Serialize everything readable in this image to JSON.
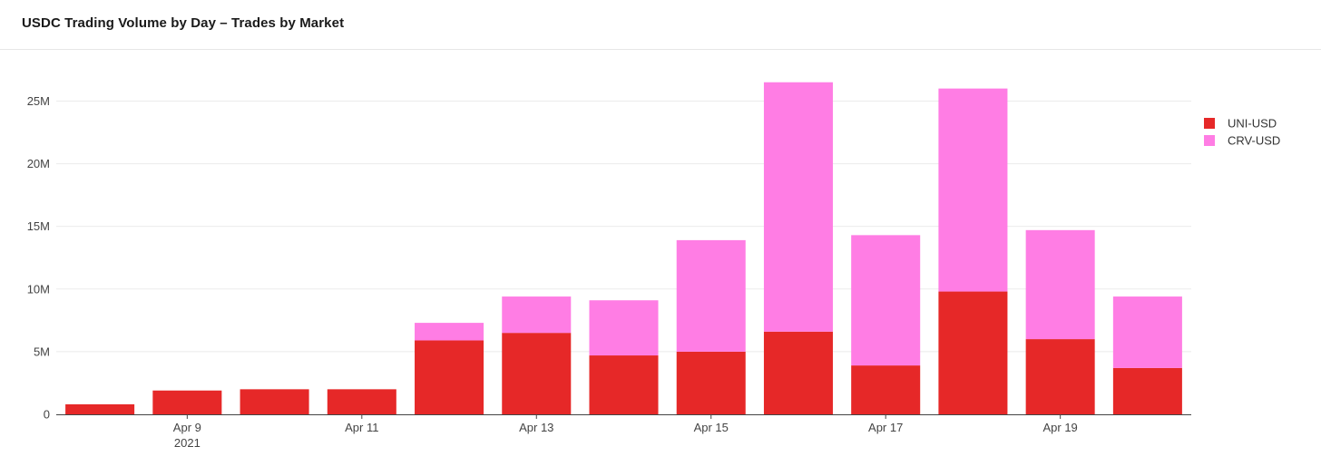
{
  "header": {
    "title": "USDC Trading Volume by Day – Trades by Market"
  },
  "chart_data": {
    "type": "bar",
    "stacked": true,
    "title": "USDC Trading Volume by Day – Trades by Market",
    "xlabel": "",
    "ylabel": "",
    "categories": [
      "2021-04-08",
      "2021-04-09",
      "2021-04-10",
      "2021-04-11",
      "2021-04-12",
      "2021-04-13",
      "2021-04-14",
      "2021-04-15",
      "2021-04-16",
      "2021-04-17",
      "2021-04-18",
      "2021-04-19",
      "2021-04-20"
    ],
    "x_tick_labels": [
      {
        "category": "2021-04-09",
        "label": "Apr 9",
        "sublabel": "2021"
      },
      {
        "category": "2021-04-11",
        "label": "Apr 11",
        "sublabel": ""
      },
      {
        "category": "2021-04-13",
        "label": "Apr 13",
        "sublabel": ""
      },
      {
        "category": "2021-04-15",
        "label": "Apr 15",
        "sublabel": ""
      },
      {
        "category": "2021-04-17",
        "label": "Apr 17",
        "sublabel": ""
      },
      {
        "category": "2021-04-19",
        "label": "Apr 19",
        "sublabel": ""
      }
    ],
    "y_ticks": [
      {
        "value": 0,
        "label": "0"
      },
      {
        "value": 5000000,
        "label": "5M"
      },
      {
        "value": 10000000,
        "label": "10M"
      },
      {
        "value": 15000000,
        "label": "15M"
      },
      {
        "value": 20000000,
        "label": "20M"
      },
      {
        "value": 25000000,
        "label": "25M"
      }
    ],
    "ylim": [
      0,
      28000000
    ],
    "grid": true,
    "legend_position": "top-right",
    "series": [
      {
        "name": "UNI-USD",
        "color": "#e62828",
        "values": [
          800000,
          1900000,
          2000000,
          2000000,
          5900000,
          6500000,
          4700000,
          5000000,
          6600000,
          3900000,
          9800000,
          6000000,
          3700000
        ]
      },
      {
        "name": "CRV-USD",
        "color": "#ff7de4",
        "values": [
          0,
          0,
          0,
          0,
          1400000,
          2900000,
          4400000,
          8900000,
          19900000,
          10400000,
          16200000,
          8700000,
          5700000
        ]
      }
    ]
  }
}
